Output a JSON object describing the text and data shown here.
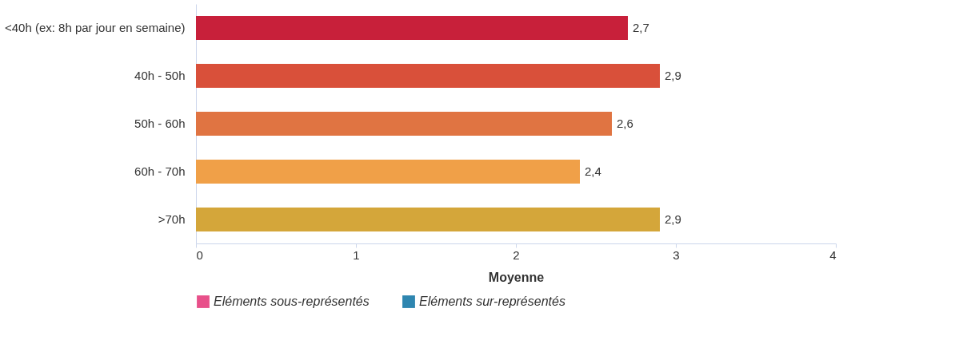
{
  "chart_data": {
    "type": "bar",
    "orientation": "horizontal",
    "xlabel": "Moyenne",
    "categories": [
      "<40h (ex: 8h par jour en semaine)",
      "40h - 50h",
      "50h - 60h",
      "60h - 70h",
      ">70h"
    ],
    "series": [
      {
        "values": [
          2.7,
          2.9,
          2.6,
          2.4,
          2.9
        ],
        "colors": [
          "#c8203a",
          "#d9503a",
          "#e07442",
          "#f0a048",
          "#d4a63a"
        ],
        "value_labels": [
          "2,7",
          "2,9",
          "2,6",
          "2,4",
          "2,9"
        ]
      },
      {
        "name": "Eléments sous-représentés",
        "color": "#e8508a",
        "values": [
          null,
          null,
          null,
          null,
          null
        ]
      },
      {
        "name": "Eléments sur-représentés",
        "color": "#2e86b0",
        "values": [
          null,
          null,
          null,
          null,
          null
        ]
      }
    ],
    "xlim": [
      0,
      4
    ],
    "xticks": [
      0,
      1,
      2,
      3,
      4
    ],
    "grid": false,
    "legend": "bottom"
  }
}
